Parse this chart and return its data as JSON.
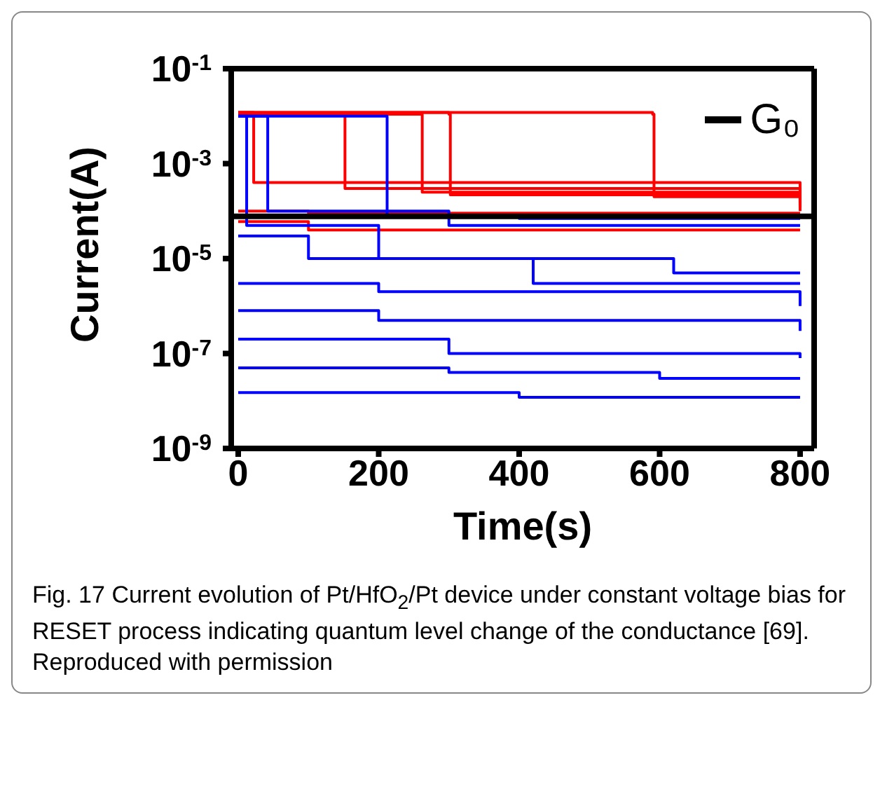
{
  "chart_data": {
    "type": "step",
    "xlabel": "Time(s)",
    "ylabel": "Current(A)",
    "log": "y",
    "xlim": [
      -10,
      820
    ],
    "xticks": [
      0,
      200,
      400,
      600,
      800
    ],
    "ylim": [
      1e-09,
      0.1
    ],
    "yticks": [
      {
        "value": 1e-09,
        "label": "10$^{-9}$"
      },
      {
        "value": 1e-07,
        "label": "10$^{-7}$"
      },
      {
        "value": 1e-05,
        "label": "10$^{-5}$"
      },
      {
        "value": 0.001,
        "label": "10$^{-3}$"
      },
      {
        "value": 0.1,
        "label": "10$^{-1}$"
      }
    ],
    "legend": "top right",
    "series": [
      {
        "color": "#ff0000",
        "x": [
          0,
          590,
          592,
          800
        ],
        "values": [
          0.012,
          0.011,
          0.0002,
          0.00018
        ]
      },
      {
        "color": "#ff0000",
        "x": [
          0,
          300,
          302,
          800
        ],
        "values": [
          0.012,
          0.011,
          0.00022,
          0.00015
        ]
      },
      {
        "color": "#ff0000",
        "x": [
          0,
          260,
          262,
          800
        ],
        "values": [
          0.011,
          0.011,
          0.00025,
          0.00013
        ]
      },
      {
        "color": "#ff0000",
        "x": [
          0,
          150,
          152,
          800
        ],
        "values": [
          0.011,
          0.011,
          0.0003,
          0.00012
        ]
      },
      {
        "color": "#ff0000",
        "x": [
          0,
          20,
          22,
          800
        ],
        "values": [
          0.012,
          0.012,
          0.0004,
          0.0001
        ]
      },
      {
        "color": "#ff0000",
        "x": [
          0,
          100,
          400,
          800
        ],
        "values": [
          0.0001,
          9e-05,
          9e-05,
          9e-05
        ]
      },
      {
        "color": "#ff0000",
        "x": [
          0,
          100,
          300,
          800
        ],
        "values": [
          6e-05,
          4e-05,
          4e-05,
          4e-05
        ]
      },
      {
        "color": "#0000ff",
        "x": [
          0,
          210,
          212,
          400,
          800
        ],
        "values": [
          0.01,
          0.01,
          8e-05,
          7e-05,
          7e-05
        ]
      },
      {
        "color": "#0000ff",
        "x": [
          0,
          40,
          42,
          300,
          800
        ],
        "values": [
          0.01,
          0.01,
          0.0001,
          5e-05,
          5e-05
        ]
      },
      {
        "color": "#0000ff",
        "x": [
          0,
          10,
          12,
          200,
          400,
          420,
          800
        ],
        "values": [
          0.01,
          0.01,
          5e-05,
          1e-05,
          1e-05,
          3e-06,
          3e-06
        ]
      },
      {
        "color": "#0000ff",
        "x": [
          0,
          100,
          300,
          600,
          620,
          800
        ],
        "values": [
          3e-05,
          1e-05,
          1e-05,
          1e-05,
          5e-06,
          5e-06
        ]
      },
      {
        "color": "#0000ff",
        "x": [
          0,
          200,
          400,
          800
        ],
        "values": [
          3e-06,
          2e-06,
          2e-06,
          1e-06
        ]
      },
      {
        "color": "#0000ff",
        "x": [
          0,
          200,
          500,
          800
        ],
        "values": [
          8e-07,
          5e-07,
          5e-07,
          3e-07
        ]
      },
      {
        "color": "#0000ff",
        "x": [
          0,
          300,
          600,
          800
        ],
        "values": [
          2e-07,
          1e-07,
          1e-07,
          8e-08
        ]
      },
      {
        "color": "#0000ff",
        "x": [
          0,
          300,
          600,
          800
        ],
        "values": [
          5e-08,
          4e-08,
          3e-08,
          3e-08
        ]
      },
      {
        "color": "#0000ff",
        "x": [
          0,
          400,
          800
        ],
        "values": [
          1.5e-08,
          1.2e-08,
          1.2e-08
        ]
      },
      {
        "name": "G₀",
        "color": "#000000",
        "x": [
          -10,
          820
        ],
        "values": [
          7.75e-05,
          7.75e-05
        ]
      }
    ],
    "annotations": [
      "Fig. 17 Current evolution of Pt/HfO$_{2}$/Pt device under constant voltage bias for RESET process indicating quantum level change of the conductance [69]. Reproduced with permission"
    ]
  }
}
